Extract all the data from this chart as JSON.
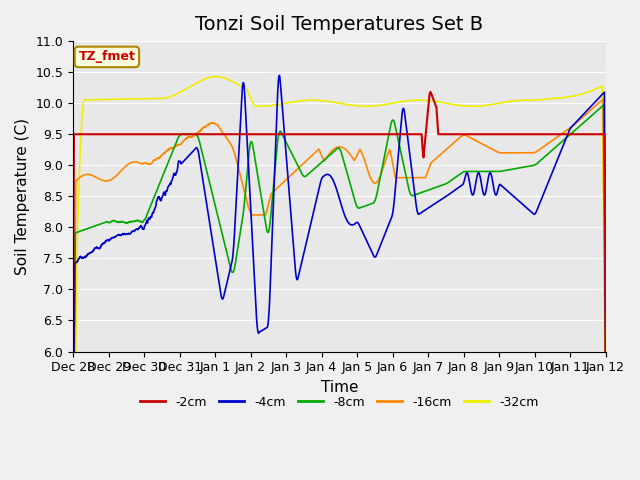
{
  "title": "Tonzi Soil Temperatures Set B",
  "xlabel": "Time",
  "ylabel": "Soil Temperature (C)",
  "ylim": [
    6.0,
    11.0
  ],
  "yticks": [
    6.0,
    6.5,
    7.0,
    7.5,
    8.0,
    8.5,
    9.0,
    9.5,
    10.0,
    10.5,
    11.0
  ],
  "bg_color": "#e8e8e8",
  "plot_bg_color": "#e8e8e8",
  "legend_label": "TZ_fmet",
  "series": {
    "2cm": {
      "color": "#cc0000",
      "label": "-2cm"
    },
    "4cm": {
      "color": "#0000cc",
      "label": "-4cm"
    },
    "8cm": {
      "color": "#00aa00",
      "label": "-8cm"
    },
    "16cm": {
      "color": "#ff8800",
      "label": "-16cm"
    },
    "32cm": {
      "color": "#eeee00",
      "label": "-32cm"
    }
  },
  "xtick_labels": [
    "Dec 28",
    "Dec 29",
    "Dec 30",
    "Dec 31",
    "Jan 1",
    "Jan 2",
    "Jan 3",
    "Jan 4",
    "Jan 5",
    "Jan 6",
    "Jan 7",
    "Jan 8",
    "Jan 9",
    "Jan 10",
    "Jan 11",
    "Jan 12"
  ],
  "title_fontsize": 14,
  "axis_fontsize": 11,
  "tick_fontsize": 9
}
